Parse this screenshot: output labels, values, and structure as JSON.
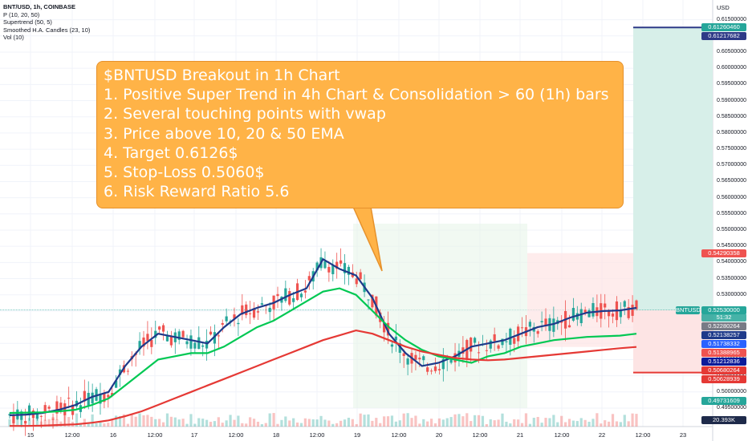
{
  "legend": {
    "symbol": "BNT/USD, 1h, COINBASE",
    "lines": [
      "P (10, 20, 50)",
      "Supertrend (50, 5)",
      "Smoothed H.A. Candles (23, 10)",
      "Vol (10)"
    ]
  },
  "callout": {
    "lines": [
      "$BNTUSD Breakout in 1h Chart",
      "1. Positive Super Trend in 4h Chart & Consolidation > 60 (1h) bars",
      "2. Several touching points with vwap",
      "3. Price above 10, 20 & 50 EMA",
      "4. Target 0.6126$",
      "5. Stop-Loss 0.5060$",
      "6. Risk Reward Ratio 5.6"
    ]
  },
  "axis": {
    "currency": "USD"
  },
  "badges": [
    {
      "text": "0.61260460",
      "color": "#26a69a",
      "value": 0.6126046
    },
    {
      "text": "0.61217682",
      "color": "#2e3a87",
      "value": 0.61217682
    },
    {
      "text": "0.54290358",
      "color": "#ef5350",
      "value": 0.54290358
    },
    {
      "text": "0.52530000",
      "color": "#26a69a",
      "value": 0.5253,
      "symbol": "BNTUSD",
      "sub": "51:32"
    },
    {
      "text": "0.52280264",
      "color": "#787b86",
      "value": 0.52280264
    },
    {
      "text": "0.52138257",
      "color": "#1e3a8a",
      "value": 0.52138257
    },
    {
      "text": "0.51738332",
      "color": "#2962ff",
      "value": 0.51738332
    },
    {
      "text": "0.51388965",
      "color": "#ef5350",
      "value": 0.51388965
    },
    {
      "text": "0.51212836",
      "color": "#0d1b9a",
      "value": 0.51212836
    },
    {
      "text": "0.50680264",
      "color": "#e53935",
      "value": 0.50680264
    },
    {
      "text": "0.50628939",
      "color": "#e53935",
      "value": 0.50628939
    },
    {
      "text": "0.49731609",
      "color": "#26a69a",
      "value": 0.49731609
    },
    {
      "text": "20.393K",
      "color": "#1e2a4a",
      "value": null
    }
  ],
  "chart_data": {
    "type": "line",
    "title": "BNT/USD, 1h, COINBASE",
    "ylabel": "USD",
    "ylim": [
      0.4893,
      0.6211
    ],
    "y_ticks": [
      "0.61500000",
      "0.61000000",
      "0.60500000",
      "0.60000000",
      "0.59500000",
      "0.59000000",
      "0.58500000",
      "0.58000000",
      "0.57500000",
      "0.57000000",
      "0.56500000",
      "0.56000000",
      "0.55500000",
      "0.55000000",
      "0.54500000",
      "0.54000000",
      "0.53500000",
      "0.53000000",
      "0.52500000",
      "0.52000000",
      "0.51500000",
      "0.51000000",
      "0.50500000",
      "0.50000000",
      "0.49500000"
    ],
    "x_ticks": [
      "15",
      "12:00",
      "16",
      "12:00",
      "17",
      "12:00",
      "18",
      "12:00",
      "19",
      "12:00",
      "20",
      "12:00",
      "21",
      "12:00",
      "22",
      "12:00",
      "23"
    ],
    "series": [
      {
        "name": "P (10)",
        "color": "#1e3a8a",
        "values": [
          0.4928,
          0.493,
          0.4935,
          0.4945,
          0.496,
          0.4985,
          0.5,
          0.508,
          0.514,
          0.518,
          0.517,
          0.516,
          0.515,
          0.52,
          0.524,
          0.526,
          0.5275,
          0.53,
          0.532,
          0.541,
          0.538,
          0.536,
          0.529,
          0.518,
          0.512,
          0.508,
          0.509,
          0.511,
          0.514,
          0.515,
          0.516,
          0.518,
          0.52,
          0.521,
          0.523,
          0.5245,
          0.525,
          0.5252,
          0.526
        ]
      },
      {
        "name": "P (20)",
        "color": "#00c853",
        "values": [
          0.4935,
          0.4936,
          0.4937,
          0.494,
          0.4945,
          0.496,
          0.498,
          0.502,
          0.506,
          0.51,
          0.511,
          0.512,
          0.512,
          0.514,
          0.517,
          0.52,
          0.522,
          0.525,
          0.528,
          0.531,
          0.532,
          0.53,
          0.525,
          0.52,
          0.516,
          0.513,
          0.511,
          0.51,
          0.509,
          0.511,
          0.512,
          0.514,
          0.515,
          0.516,
          0.5165,
          0.517,
          0.5172,
          0.5174,
          0.518
        ]
      },
      {
        "name": "P (50)",
        "color": "#e53935",
        "values": [
          0.4895,
          0.4895,
          0.4896,
          0.4898,
          0.49,
          0.4905,
          0.4912,
          0.4925,
          0.494,
          0.496,
          0.498,
          0.5,
          0.502,
          0.504,
          0.506,
          0.508,
          0.51,
          0.512,
          0.514,
          0.516,
          0.5175,
          0.519,
          0.518,
          0.516,
          0.514,
          0.5125,
          0.5115,
          0.5105,
          0.51,
          0.5098,
          0.51,
          0.5105,
          0.511,
          0.5115,
          0.512,
          0.5125,
          0.513,
          0.5135,
          0.5139
        ]
      }
    ],
    "position": {
      "entry": 0.5253,
      "target": 0.6126,
      "stop": 0.506
    }
  },
  "colors": {
    "up": "#26a69a",
    "down": "#ef5350",
    "target_zone": "#d7efe9",
    "stop_zone": "#fde4e4"
  }
}
